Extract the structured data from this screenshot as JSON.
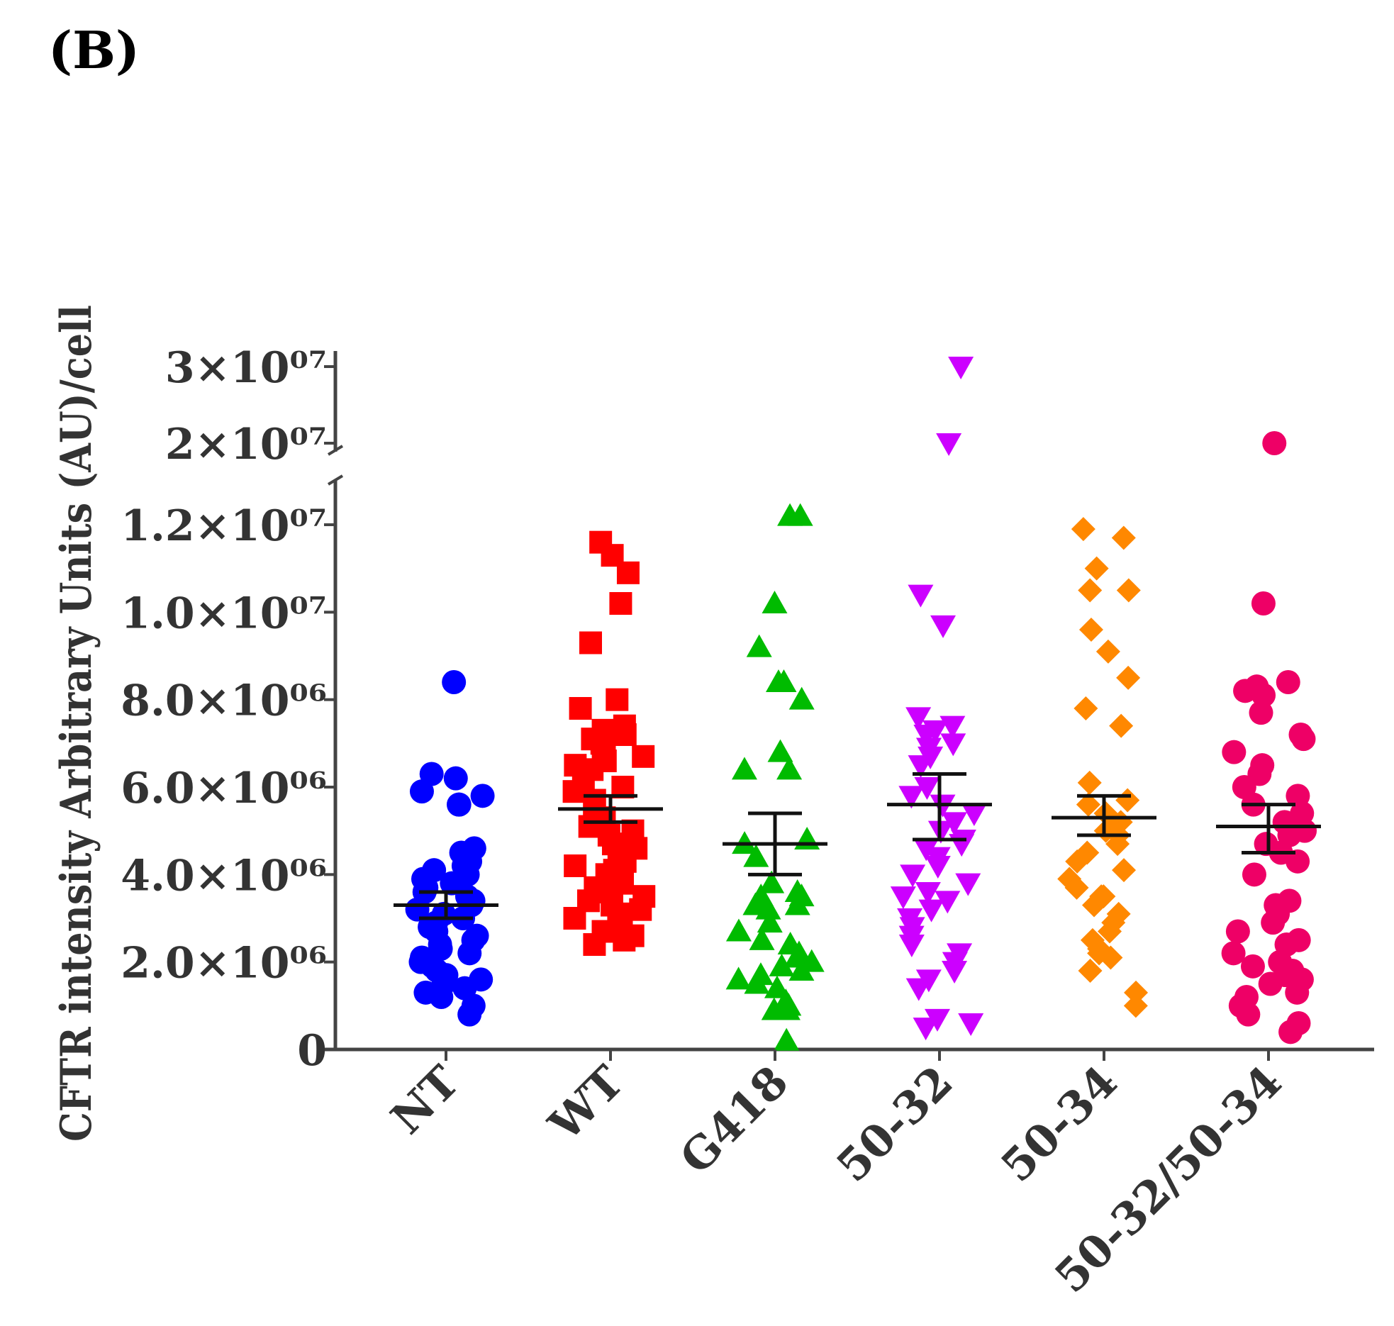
{
  "panel_label": "(B)",
  "chart_data": {
    "type": "scatter",
    "title": "",
    "xlabel": "",
    "ylabel": "CFTR intensity Arbitrary Units (AU)/cell",
    "categories": [
      "NT",
      "WT",
      "G418",
      "50-32",
      "50-34",
      "50-32/50-34"
    ],
    "ylim": [
      0,
      30000000
    ],
    "axis_break": [
      12500000,
      20000000
    ],
    "y_ticks": [
      {
        "value": 0,
        "label": "0"
      },
      {
        "value": 2000000,
        "label": "2.0×10⁰⁶"
      },
      {
        "value": 4000000,
        "label": "4.0×10⁰⁶"
      },
      {
        "value": 6000000,
        "label": "6.0×10⁰⁶"
      },
      {
        "value": 8000000,
        "label": "8.0×10⁰⁶"
      },
      {
        "value": 10000000,
        "label": "1.0×10⁰⁷"
      },
      {
        "value": 12000000,
        "label": "1.2×10⁰⁷"
      },
      {
        "value": 20000000,
        "label": "2×10⁰⁷"
      },
      {
        "value": 30000000,
        "label": "3×10⁰⁷"
      }
    ],
    "series": [
      {
        "name": "NT",
        "color": "#0000ff",
        "marker": "circle",
        "mean": 3300000,
        "sem_low": 3000000,
        "sem_high": 3600000,
        "values": [
          8400000,
          6300000,
          6200000,
          5800000,
          5600000,
          5600000,
          5900000,
          4600000,
          4500000,
          4300000,
          4200000,
          4100000,
          4000000,
          3900000,
          3800000,
          3700000,
          3600000,
          3500000,
          3400000,
          3300000,
          3200000,
          3100000,
          3000000,
          2900000,
          2800000,
          2700000,
          2600000,
          2500000,
          2400000,
          2300000,
          2200000,
          2100000,
          2000000,
          1900000,
          1800000,
          1700000,
          1600000,
          1500000,
          1400000,
          1300000,
          1200000,
          1000000,
          800000
        ]
      },
      {
        "name": "WT",
        "color": "#ff0000",
        "marker": "square",
        "mean": 5500000,
        "sem_low": 5200000,
        "sem_high": 5800000,
        "values": [
          11600000,
          11300000,
          10900000,
          10200000,
          9300000,
          8000000,
          7800000,
          7400000,
          7300000,
          7200000,
          7100000,
          7000000,
          6900000,
          6800000,
          6700000,
          6600000,
          6500000,
          6400000,
          6200000,
          6000000,
          5900000,
          5700000,
          5500000,
          5300000,
          5100000,
          5000000,
          4900000,
          4700000,
          4600000,
          4500000,
          4300000,
          4200000,
          4100000,
          4000000,
          3900000,
          3800000,
          3700000,
          3600000,
          3500000,
          3400000,
          3300000,
          3200000,
          3100000,
          3000000,
          2900000,
          2800000,
          2700000,
          2600000,
          2500000,
          2400000
        ]
      },
      {
        "name": "G418",
        "color": "#00bb00",
        "marker": "triangle-up",
        "mean": 4700000,
        "sem_low": 4000000,
        "sem_high": 5400000,
        "values": [
          12200000,
          12200000,
          10200000,
          9200000,
          8400000,
          8400000,
          8000000,
          6800000,
          6400000,
          6400000,
          4800000,
          4700000,
          4400000,
          3800000,
          3600000,
          3500000,
          3500000,
          3300000,
          3300000,
          3200000,
          2900000,
          2700000,
          2500000,
          2400000,
          2200000,
          2100000,
          2000000,
          1900000,
          1800000,
          1700000,
          1600000,
          1500000,
          1400000,
          1100000,
          1000000,
          900000,
          900000,
          200000
        ]
      },
      {
        "name": "50-32",
        "color": "#cc00ff",
        "marker": "triangle-down",
        "mean": 5600000,
        "sem_low": 4800000,
        "sem_high": 6300000,
        "values": [
          30000000,
          20000000,
          10400000,
          9700000,
          7600000,
          7400000,
          7300000,
          7200000,
          7000000,
          6900000,
          6700000,
          6500000,
          6000000,
          5800000,
          5600000,
          5400000,
          5200000,
          5000000,
          4800000,
          4700000,
          4600000,
          4400000,
          4200000,
          4000000,
          3800000,
          3600000,
          3500000,
          3400000,
          3200000,
          3000000,
          2800000,
          2600000,
          2400000,
          2200000,
          2000000,
          1800000,
          1600000,
          1400000,
          700000,
          600000,
          500000
        ]
      },
      {
        "name": "50-34",
        "color": "#ff8800",
        "marker": "diamond",
        "mean": 5300000,
        "sem_low": 4900000,
        "sem_high": 5800000,
        "values": [
          11900000,
          11700000,
          11000000,
          10500000,
          10500000,
          9600000,
          9100000,
          8500000,
          7800000,
          7400000,
          6100000,
          5700000,
          5600000,
          5400000,
          5200000,
          5000000,
          4900000,
          4700000,
          4500000,
          4300000,
          4100000,
          3900000,
          3700000,
          3500000,
          3500000,
          3300000,
          3100000,
          2900000,
          2700000,
          2500000,
          2300000,
          2200000,
          2100000,
          1800000,
          1300000,
          1000000
        ]
      },
      {
        "name": "50-32/50-34",
        "color": "#ee0066",
        "marker": "circle",
        "mean": 5100000,
        "sem_low": 4500000,
        "sem_high": 5600000,
        "values": [
          20000000,
          10200000,
          8400000,
          8300000,
          8200000,
          8100000,
          7700000,
          7200000,
          7100000,
          6800000,
          6500000,
          6300000,
          6000000,
          5800000,
          5600000,
          5400000,
          5200000,
          5000000,
          4900000,
          4700000,
          4500000,
          4300000,
          4000000,
          3400000,
          3300000,
          3100000,
          2900000,
          2700000,
          2500000,
          2400000,
          2200000,
          2000000,
          1900000,
          1800000,
          1700000,
          1600000,
          1500000,
          1300000,
          1200000,
          1000000,
          800000,
          600000,
          400000
        ]
      }
    ]
  }
}
